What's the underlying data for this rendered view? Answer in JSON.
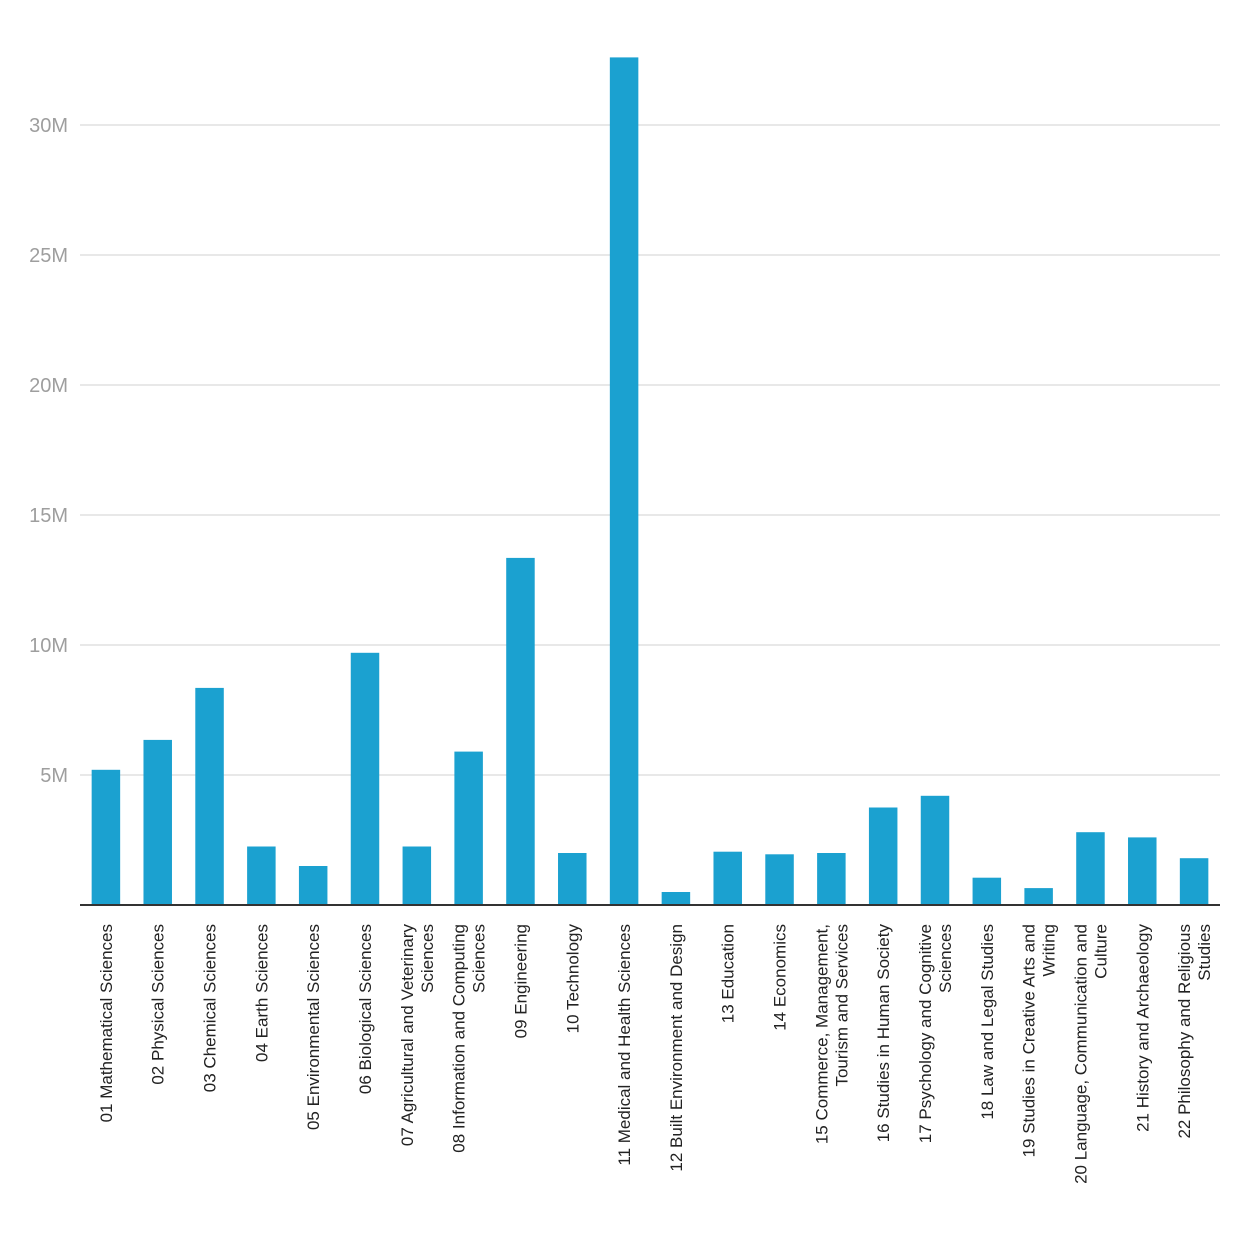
{
  "chart_data": {
    "type": "bar",
    "title": "",
    "xlabel": "",
    "ylabel": "",
    "ylim": [
      0,
      33000000
    ],
    "yticks": [
      5000000,
      10000000,
      15000000,
      20000000,
      25000000,
      30000000
    ],
    "ytick_labels": [
      "5M",
      "10M",
      "15M",
      "20M",
      "25M",
      "30M"
    ],
    "grid": true,
    "bar_color": "#1ba1d0",
    "categories": [
      [
        "01 Mathematical Sciences"
      ],
      [
        "02 Physical Sciences"
      ],
      [
        "03 Chemical Sciences"
      ],
      [
        "04 Earth Sciences"
      ],
      [
        "05 Environmental Sciences"
      ],
      [
        "06 Biological Sciences"
      ],
      [
        "07 Agricultural and Veterinary",
        "Sciences"
      ],
      [
        "08 Information and Computing",
        "Sciences"
      ],
      [
        "09 Engineering"
      ],
      [
        "10 Technology"
      ],
      [
        "11 Medical and Health Sciences"
      ],
      [
        "12 Built Environment and Design"
      ],
      [
        "13 Education"
      ],
      [
        "14 Economics"
      ],
      [
        "15 Commerce, Management,",
        "Tourism and Services"
      ],
      [
        "16 Studies in Human Society"
      ],
      [
        "17 Psychology and Cognitive",
        "Sciences"
      ],
      [
        "18 Law and Legal Studies"
      ],
      [
        "19 Studies in Creative Arts and",
        "Writing"
      ],
      [
        "20 Language, Communication and",
        "Culture"
      ],
      [
        "21 History and Archaeology"
      ],
      [
        "22 Philosophy and Religious",
        "Studies"
      ]
    ],
    "values": [
      5200000,
      6350000,
      8350000,
      2250000,
      1500000,
      9700000,
      2250000,
      5900000,
      13350000,
      2000000,
      32600000,
      500000,
      2050000,
      1950000,
      2000000,
      3750000,
      4200000,
      1050000,
      650000,
      2800000,
      2600000,
      1800000
    ]
  }
}
